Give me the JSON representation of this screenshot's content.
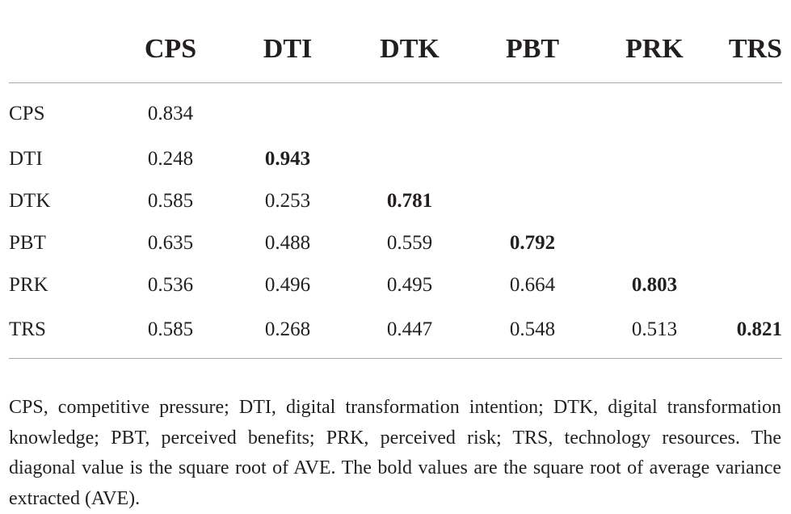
{
  "table": {
    "headers": [
      "",
      "CPS",
      "DTI",
      "DTK",
      "PBT",
      "PRK",
      "TRS"
    ],
    "rows": [
      {
        "label": "CPS",
        "values": [
          "0.834",
          "",
          "",
          "",
          "",
          ""
        ],
        "bold_index": -1
      },
      {
        "label": "DTI",
        "values": [
          "0.248",
          "0.943",
          "",
          "",
          "",
          ""
        ],
        "bold_index": 1
      },
      {
        "label": "DTK",
        "values": [
          "0.585",
          "0.253",
          "0.781",
          "",
          "",
          ""
        ],
        "bold_index": 2
      },
      {
        "label": "PBT",
        "values": [
          "0.635",
          "0.488",
          "0.559",
          "0.792",
          "",
          ""
        ],
        "bold_index": 3
      },
      {
        "label": "PRK",
        "values": [
          "0.536",
          "0.496",
          "0.495",
          "0.664",
          "0.803",
          ""
        ],
        "bold_index": 4
      },
      {
        "label": "TRS",
        "values": [
          "0.585",
          "0.268",
          "0.447",
          "0.548",
          "0.513",
          "0.821"
        ],
        "bold_index": 5
      }
    ]
  },
  "footnote": "CPS, competitive pressure; DTI, digital transformation intention; DTK, digital transformation knowledge; PBT, perceived benefits; PRK, perceived risk; TRS, technology resources. The diagonal value is the square root of AVE. The bold values are the square root of average variance extracted (AVE).",
  "colors": {
    "text": "#231f20",
    "rule": "#a7a9ac",
    "background": "#ffffff"
  }
}
